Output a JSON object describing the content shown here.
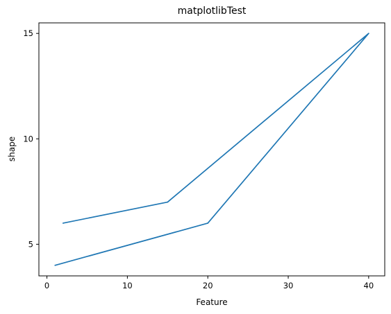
{
  "chart_data": {
    "type": "line",
    "title": "matplotlibTest",
    "xlabel": "Feature",
    "ylabel": "shape",
    "xlim": [
      -1,
      42
    ],
    "ylim": [
      3.5,
      15.5
    ],
    "xticks": [
      0,
      10,
      20,
      30,
      40
    ],
    "yticks": [
      5,
      10,
      15
    ],
    "grid": false,
    "legend": "none",
    "color": "#1f77b4",
    "x": [
      1,
      20,
      40,
      15,
      2
    ],
    "y": [
      4,
      6,
      15,
      7,
      6
    ]
  }
}
